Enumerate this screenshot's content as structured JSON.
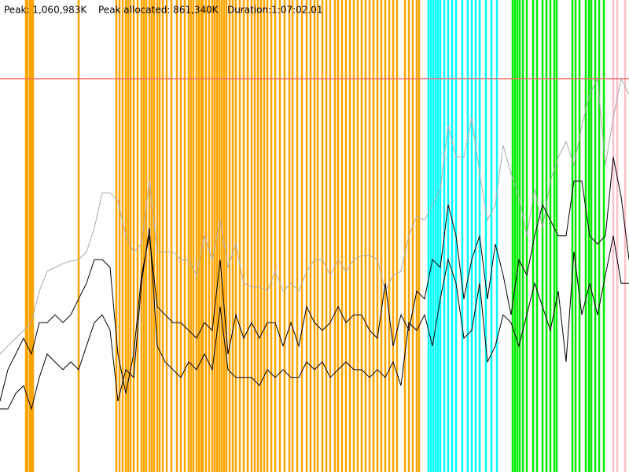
{
  "header": {
    "peak": "Peak: 1,060,983K",
    "peak_allocated": "Peak allocated: 861,340K",
    "duration": "Duration:1:07:02.01"
  },
  "chart_data": {
    "type": "line",
    "xlim": [
      0,
      800
    ],
    "ylim": [
      0,
      1273180
    ],
    "x": [
      0,
      10,
      20,
      30,
      40,
      50,
      60,
      70,
      80,
      90,
      100,
      110,
      120,
      130,
      140,
      150,
      160,
      170,
      180,
      190,
      200,
      210,
      220,
      230,
      240,
      250,
      260,
      270,
      280,
      290,
      300,
      310,
      320,
      330,
      340,
      350,
      360,
      370,
      380,
      390,
      400,
      410,
      420,
      430,
      440,
      450,
      460,
      470,
      480,
      490,
      500,
      510,
      520,
      530,
      540,
      550,
      560,
      570,
      580,
      590,
      600,
      610,
      620,
      630,
      640,
      650,
      660,
      670,
      680,
      690,
      700,
      710,
      720,
      730,
      740,
      750,
      760,
      770,
      780,
      790,
      800
    ],
    "peak_line": {
      "value": 1060983,
      "color": "#ff6b6b"
    },
    "events": [
      {
        "color": "#ffa500",
        "x": [
          33,
          35,
          38,
          40,
          42,
          100,
          148,
          152,
          156,
          160,
          163,
          166,
          170,
          175,
          180,
          183,
          186,
          190,
          193,
          196,
          200,
          203,
          207,
          212,
          218,
          225,
          230,
          235,
          240,
          243,
          246,
          250,
          253,
          256,
          258,
          262,
          266,
          270,
          273,
          276,
          279,
          282,
          285,
          288,
          292,
          296,
          300,
          305,
          310,
          315,
          320,
          324,
          328,
          332,
          336,
          340,
          345,
          350,
          356,
          362,
          368,
          372,
          378,
          384,
          390,
          395,
          400,
          404,
          410,
          415,
          420,
          426,
          430,
          435,
          440,
          445,
          450,
          455,
          460,
          465,
          470,
          475,
          480,
          485,
          490,
          495,
          500,
          505,
          515,
          520,
          525,
          530,
          533
        ]
      },
      {
        "color": "#00ffff",
        "x": [
          545,
          548,
          551,
          554,
          557,
          560,
          565,
          570,
          575,
          580,
          588,
          595,
          600,
          605,
          610,
          618,
          625,
          632
        ]
      },
      {
        "color": "#00ee00",
        "x": [
          652,
          655,
          658,
          661,
          665,
          670,
          678,
          683,
          690,
          695,
          700,
          705,
          708,
          728,
          732,
          737,
          745,
          749,
          752,
          757,
          762,
          768
        ]
      },
      {
        "color": "#ffc0cb",
        "x": [
          780,
          785,
          795
        ]
      }
    ],
    "series": [
      {
        "color": "#aaaaaa",
        "values": [
          318000,
          340000,
          361000,
          382000,
          403000,
          488000,
          541000,
          552000,
          562000,
          569000,
          573000,
          594000,
          658000,
          753000,
          753000,
          732000,
          637000,
          594000,
          615000,
          785000,
          594000,
          594000,
          594000,
          573000,
          573000,
          531000,
          637000,
          573000,
          679000,
          552000,
          615000,
          509000,
          499000,
          499000,
          488000,
          541000,
          488000,
          509000,
          488000,
          541000,
          573000,
          573000,
          531000,
          573000,
          541000,
          573000,
          584000,
          584000,
          573000,
          488000,
          531000,
          541000,
          637000,
          690000,
          679000,
          721000,
          764000,
          934000,
          849000,
          849000,
          955000,
          806000,
          679000,
          721000,
          881000,
          806000,
          743000,
          637000,
          764000,
          658000,
          785000,
          849000,
          891000,
          828000,
          934000,
          1019000,
          1061000,
          828000,
          955000,
          1061000,
          1019000
        ]
      },
      {
        "color": "#000000",
        "values": [
          191000,
          276000,
          318000,
          361000,
          318000,
          403000,
          403000,
          424000,
          403000,
          424000,
          467000,
          509000,
          573000,
          573000,
          552000,
          318000,
          212000,
          318000,
          531000,
          637000,
          446000,
          424000,
          403000,
          403000,
          382000,
          361000,
          403000,
          382000,
          573000,
          318000,
          424000,
          361000,
          403000,
          361000,
          403000,
          403000,
          340000,
          403000,
          340000,
          446000,
          403000,
          382000,
          403000,
          446000,
          403000,
          424000,
          424000,
          382000,
          361000,
          509000,
          340000,
          424000,
          382000,
          488000,
          467000,
          573000,
          552000,
          721000,
          637000,
          467000,
          573000,
          637000,
          467000,
          615000,
          531000,
          424000,
          573000,
          531000,
          637000,
          721000,
          679000,
          637000,
          637000,
          785000,
          785000,
          637000,
          615000,
          637000,
          849000,
          743000,
          573000
        ]
      },
      {
        "color": "#000000",
        "values": [
          170000,
          170000,
          212000,
          233000,
          170000,
          255000,
          318000,
          297000,
          276000,
          297000,
          276000,
          340000,
          403000,
          424000,
          382000,
          191000,
          276000,
          255000,
          509000,
          658000,
          340000,
          297000,
          276000,
          255000,
          297000,
          276000,
          318000,
          276000,
          446000,
          276000,
          255000,
          255000,
          255000,
          233000,
          276000,
          255000,
          276000,
          255000,
          255000,
          297000,
          276000,
          297000,
          255000,
          276000,
          297000,
          276000,
          276000,
          255000,
          276000,
          255000,
          297000,
          233000,
          403000,
          382000,
          424000,
          340000,
          467000,
          573000,
          509000,
          361000,
          382000,
          509000,
          297000,
          340000,
          424000,
          403000,
          340000,
          424000,
          509000,
          446000,
          382000,
          488000,
          297000,
          594000,
          424000,
          509000,
          424000,
          531000,
          637000,
          509000,
          509000
        ]
      }
    ]
  }
}
